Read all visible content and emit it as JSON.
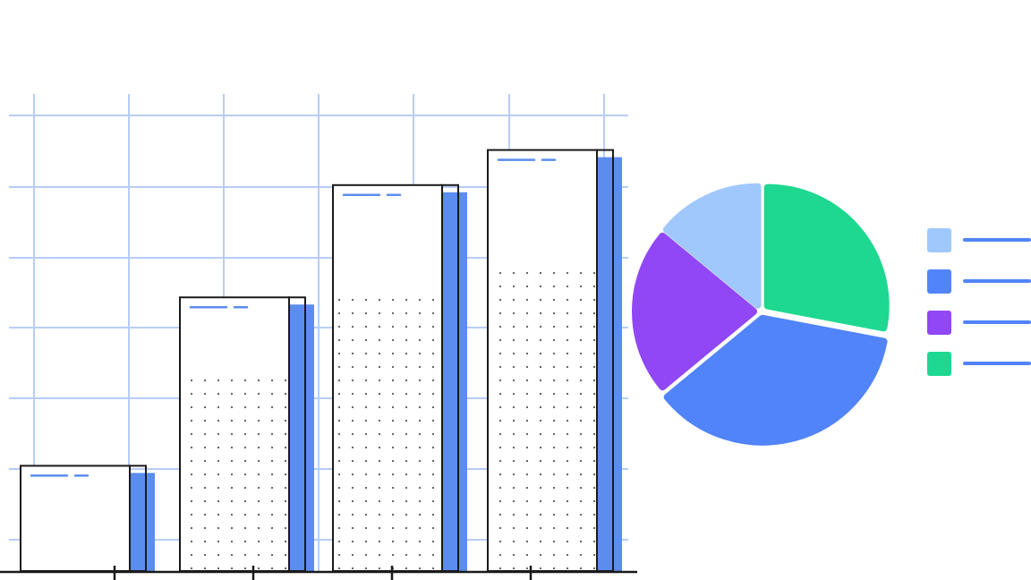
{
  "chart_data": [
    {
      "type": "bar",
      "categories": [
        "",
        "",
        "",
        ""
      ],
      "values": [
        15,
        39,
        55,
        60
      ],
      "ylim": [
        0,
        75
      ],
      "grid": true,
      "bar_color": "#ffffff",
      "bar_outline": "#1a1a1a",
      "shadow_color": "#5b8def",
      "grid_color": "#b7cdf6"
    },
    {
      "type": "pie",
      "slices": [
        {
          "value": 14,
          "color": "#a0c8fc"
        },
        {
          "value": 36,
          "color": "#5184f9"
        },
        {
          "value": 22,
          "color": "#9147f5"
        },
        {
          "value": 28,
          "color": "#1ed88f"
        }
      ],
      "legend": {
        "placement": "right",
        "entries": [
          {
            "color": "#a0c8fc",
            "label": ""
          },
          {
            "color": "#5184f9",
            "label": ""
          },
          {
            "color": "#9147f5",
            "label": ""
          },
          {
            "color": "#1ed88f",
            "label": ""
          }
        ]
      }
    }
  ]
}
